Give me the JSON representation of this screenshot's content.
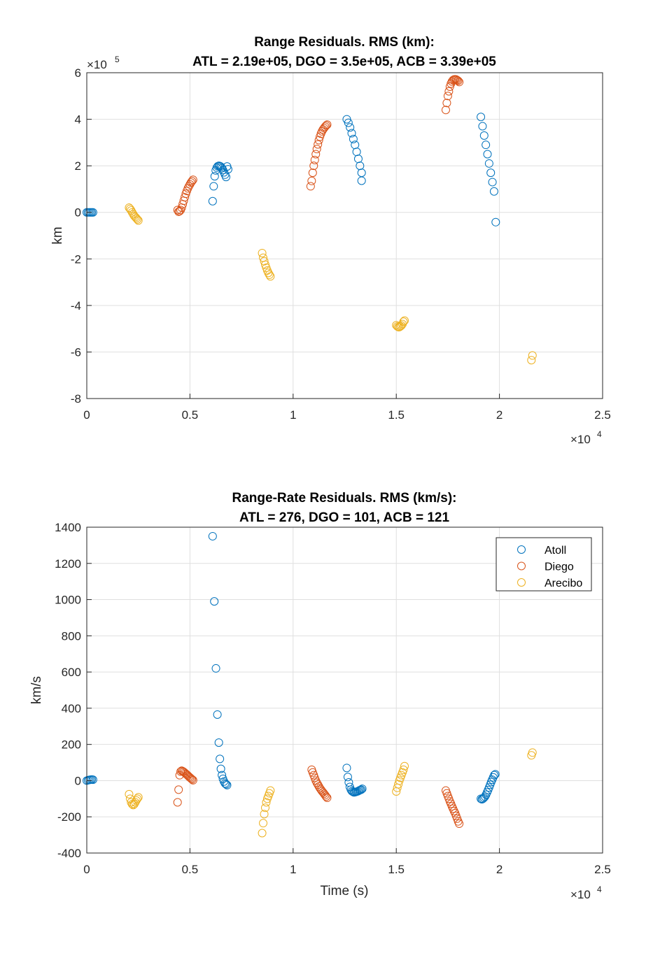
{
  "chart_data": [
    {
      "type": "scatter",
      "title": "Range Residuals. RMS (km):",
      "subtitle": "ATL = 2.19e+05, DGO = 3.5e+05, ACB = 3.39e+05",
      "xlabel": "",
      "ylabel": "km",
      "xlim": [
        0,
        25000
      ],
      "ylim": [
        -800000,
        600000
      ],
      "x_ticks": [
        0,
        5000,
        10000,
        15000,
        20000,
        25000
      ],
      "x_tick_labels": [
        "0",
        "0.5",
        "1",
        "1.5",
        "2",
        "2.5"
      ],
      "y_ticks": [
        -800000,
        -600000,
        -400000,
        -200000,
        0,
        200000,
        400000,
        600000
      ],
      "y_tick_labels": [
        "-8",
        "-6",
        "-4",
        "-2",
        "0",
        "2",
        "4",
        "6"
      ],
      "x_multiplier": {
        "base": "×10",
        "exp": "4"
      },
      "y_multiplier": {
        "base": "×10",
        "exp": "5"
      },
      "grid": true,
      "series": [
        {
          "name": "Atoll",
          "color": "#0072BD",
          "x": [
            0,
            60,
            120,
            180,
            240,
            300,
            6100,
            6150,
            6200,
            6250,
            6300,
            6350,
            6400,
            6450,
            6500,
            6550,
            6600,
            6650,
            6700,
            6750,
            6800,
            6850,
            12600,
            12680,
            12760,
            12840,
            12920,
            13000,
            13080,
            13160,
            13240,
            13320,
            19100,
            19180,
            19260,
            19340,
            19420,
            19500,
            19580,
            19660,
            19740,
            19820
          ],
          "y": [
            0,
            0,
            0,
            0,
            0,
            0,
            48000,
            112000,
            155000,
            180000,
            192000,
            198000,
            200000,
            199000,
            196000,
            190000,
            182000,
            172000,
            162000,
            152000,
            197000,
            185000,
            400000,
            385000,
            365000,
            340000,
            315000,
            290000,
            260000,
            230000,
            200000,
            170000,
            410000,
            370000,
            330000,
            290000,
            250000,
            210000,
            170000,
            130000,
            90000,
            -42000
          ],
          "x2": [
            13320
          ],
          "y2": [
            136000
          ]
        },
        {
          "name": "Diego",
          "color": "#D95319",
          "x": [
            4400,
            4450,
            4500,
            4550,
            4600,
            4650,
            4700,
            4750,
            4800,
            4850,
            4900,
            4950,
            5000,
            5050,
            5100,
            5150,
            10850,
            10900,
            10950,
            11000,
            11050,
            11100,
            11150,
            11200,
            11250,
            11300,
            11350,
            11400,
            11450,
            11500,
            11550,
            11600,
            11650,
            17400,
            17450,
            17500,
            17550,
            17600,
            17650,
            17700,
            17750,
            17800,
            17850,
            17900,
            17950,
            18000,
            18050
          ],
          "y": [
            10000,
            3000,
            5000,
            10000,
            20000,
            35000,
            50000,
            65000,
            80000,
            92000,
            103000,
            112000,
            120000,
            128000,
            134000,
            140000,
            112000,
            135000,
            170000,
            200000,
            225000,
            250000,
            272000,
            292000,
            310000,
            325000,
            338000,
            348000,
            356000,
            362000,
            368000,
            373000,
            377000,
            440000,
            470000,
            500000,
            520000,
            540000,
            553000,
            562000,
            568000,
            571000,
            572000,
            571000,
            568000,
            565000,
            560000
          ]
        },
        {
          "name": "Arecibo",
          "color": "#EDB120",
          "x": [
            2050,
            2100,
            2150,
            2200,
            2250,
            2300,
            2350,
            2400,
            2450,
            2500,
            8500,
            8550,
            8600,
            8650,
            8700,
            8750,
            8800,
            8850,
            8900,
            15000,
            15050,
            15100,
            15150,
            15200,
            15250,
            15300,
            15350,
            15400,
            21550,
            21600
          ],
          "y": [
            20000,
            15000,
            8000,
            0,
            -8000,
            -15000,
            -20000,
            -25000,
            -30000,
            -35000,
            -175000,
            -195000,
            -210000,
            -225000,
            -238000,
            -250000,
            -260000,
            -268000,
            -275000,
            -485000,
            -490000,
            -493000,
            -493000,
            -490000,
            -486000,
            -480000,
            -470000,
            -465000,
            -635000,
            -615000
          ]
        }
      ]
    },
    {
      "type": "scatter",
      "title": "Range-Rate Residuals. RMS (km/s):",
      "subtitle": "ATL = 276, DGO = 101, ACB = 121",
      "xlabel": "Time (s)",
      "ylabel": "km/s",
      "xlim": [
        0,
        25000
      ],
      "ylim": [
        -400,
        1400
      ],
      "x_ticks": [
        0,
        5000,
        10000,
        15000,
        20000,
        25000
      ],
      "x_tick_labels": [
        "0",
        "0.5",
        "1",
        "1.5",
        "2",
        "2.5"
      ],
      "y_ticks": [
        -400,
        -200,
        0,
        200,
        400,
        600,
        800,
        1000,
        1200,
        1400
      ],
      "y_tick_labels": [
        "-400",
        "-200",
        "0",
        "200",
        "400",
        "600",
        "800",
        "1000",
        "1200",
        "1400"
      ],
      "x_multiplier": {
        "base": "×10",
        "exp": "4"
      },
      "grid": true,
      "legend": {
        "placement": "top-right",
        "entries": [
          "Atoll",
          "Diego",
          "Arecibo"
        ]
      },
      "series": [
        {
          "name": "Atoll",
          "color": "#0072BD",
          "x": [
            0,
            60,
            120,
            180,
            240,
            300,
            6100,
            6180,
            6260,
            6330,
            6400,
            6450,
            6500,
            6550,
            6600,
            6650,
            6700,
            6750,
            6800,
            12600,
            12650,
            12700,
            12750,
            12800,
            12850,
            12900,
            12950,
            13000,
            13050,
            13100,
            13150,
            13200,
            13250,
            13300,
            13350,
            19100,
            19150,
            19200,
            19250,
            19300,
            19350,
            19400,
            19450,
            19500,
            19550,
            19600,
            19650,
            19700,
            19750,
            19800
          ],
          "y": [
            0,
            2,
            4,
            5,
            6,
            5,
            1350,
            990,
            620,
            365,
            210,
            120,
            65,
            30,
            10,
            -5,
            -15,
            -20,
            -25,
            70,
            20,
            -10,
            -35,
            -50,
            -58,
            -62,
            -65,
            -64,
            -62,
            -60,
            -58,
            -55,
            -52,
            -50,
            -45,
            -100,
            -103,
            -100,
            -95,
            -88,
            -78,
            -65,
            -52,
            -38,
            -23,
            -8,
            5,
            18,
            30,
            35
          ]
        },
        {
          "name": "Diego",
          "color": "#D95319",
          "x": [
            4400,
            4450,
            4500,
            4550,
            4600,
            4650,
            4700,
            4750,
            4800,
            4850,
            4900,
            4950,
            5000,
            5050,
            5100,
            5150,
            10900,
            10950,
            11000,
            11050,
            11100,
            11150,
            11200,
            11250,
            11300,
            11350,
            11400,
            11450,
            11500,
            11550,
            11600,
            11650,
            17400,
            17450,
            17500,
            17550,
            17600,
            17650,
            17700,
            17750,
            17800,
            17850,
            17900,
            17950,
            18000,
            18050
          ],
          "y": [
            -120,
            -50,
            30,
            50,
            55,
            52,
            48,
            43,
            38,
            33,
            28,
            22,
            17,
            12,
            7,
            2,
            60,
            45,
            30,
            15,
            0,
            -12,
            -22,
            -32,
            -42,
            -50,
            -58,
            -65,
            -72,
            -80,
            -88,
            -95,
            -55,
            -70,
            -85,
            -100,
            -115,
            -128,
            -142,
            -155,
            -168,
            -180,
            -195,
            -210,
            -225,
            -238
          ]
        },
        {
          "name": "Arecibo",
          "color": "#EDB120",
          "x": [
            2050,
            2100,
            2150,
            2200,
            2250,
            2300,
            2350,
            2400,
            2450,
            2500,
            8500,
            8550,
            8600,
            8650,
            8700,
            8750,
            8800,
            8850,
            8900,
            15000,
            15050,
            15100,
            15150,
            15200,
            15250,
            15300,
            15350,
            15400,
            21550,
            21600
          ],
          "y": [
            -75,
            -100,
            -120,
            -130,
            -135,
            -130,
            -120,
            -110,
            -100,
            -92,
            -290,
            -235,
            -185,
            -150,
            -120,
            -100,
            -85,
            -70,
            -55,
            -60,
            -40,
            -20,
            0,
            15,
            30,
            45,
            60,
            80,
            140,
            155
          ]
        }
      ]
    }
  ]
}
